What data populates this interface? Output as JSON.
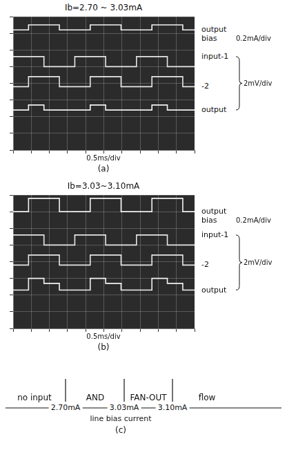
{
  "chart_data": [
    {
      "type": "line",
      "title": "Ib=2.70 ~ 3.03mA",
      "panel": "(a)",
      "x_label": "0.5ms/div",
      "x": [
        0,
        0.85,
        0.85,
        1.7,
        1.7,
        2.55,
        2.55,
        3.4,
        3.4,
        4.25,
        4.25,
        5.1,
        5.1,
        5.95,
        5.95,
        6.8,
        6.8,
        7.65,
        7.65,
        8.5,
        8.5,
        9.35,
        9.35,
        10
      ],
      "xlim": [
        0,
        10
      ],
      "xticks": [
        0,
        1,
        2,
        3,
        4,
        5,
        6,
        7,
        8,
        9,
        10
      ],
      "ylim": [
        0,
        8
      ],
      "yticks": [
        0,
        1,
        2,
        3,
        4,
        5,
        6,
        7,
        8
      ],
      "grid": true,
      "tick_labels": false,
      "series": [
        {
          "name": "output bias",
          "color": "#f2f2f2",
          "values": [
            7.2,
            7.2,
            7.5,
            7.5,
            7.5,
            7.5,
            7.2,
            7.2,
            7.2,
            7.2,
            7.5,
            7.5,
            7.5,
            7.5,
            7.2,
            7.2,
            7.2,
            7.2,
            7.5,
            7.5,
            7.5,
            7.5,
            7.2,
            7.2
          ]
        },
        {
          "name": "input-1",
          "color": "#e6e6e6",
          "values": [
            5.6,
            5.6,
            5.6,
            5.6,
            5.0,
            5.0,
            5.0,
            5.0,
            5.6,
            5.6,
            5.6,
            5.6,
            5.0,
            5.0,
            5.0,
            5.0,
            5.6,
            5.6,
            5.6,
            5.6,
            5.0,
            5.0,
            5.0,
            5.0
          ]
        },
        {
          "name": "-2",
          "color": "#e6e6e6",
          "values": [
            3.8,
            3.8,
            4.4,
            4.4,
            4.4,
            4.4,
            3.8,
            3.8,
            3.8,
            3.8,
            4.4,
            4.4,
            4.4,
            4.4,
            3.8,
            3.8,
            3.8,
            3.8,
            4.4,
            4.4,
            4.4,
            4.4,
            3.8,
            3.8
          ]
        },
        {
          "name": "output",
          "color": "#f2f2f2",
          "values": [
            2.4,
            2.4,
            2.7,
            2.7,
            2.4,
            2.4,
            2.4,
            2.4,
            2.4,
            2.4,
            2.7,
            2.7,
            2.4,
            2.4,
            2.4,
            2.4,
            2.4,
            2.4,
            2.7,
            2.7,
            2.4,
            2.4,
            2.4,
            2.4
          ]
        }
      ],
      "scale_labels": [
        {
          "text": "0.2mA/div",
          "series": [
            "output bias"
          ]
        },
        {
          "text": "2mV/div",
          "series": [
            "input-1",
            "-2",
            "output"
          ]
        }
      ]
    },
    {
      "type": "line",
      "title": "Ib=3.03~3.10mA",
      "panel": "(b)",
      "x_label": "0.5ms/div",
      "x": [
        0,
        0.85,
        0.85,
        1.7,
        1.7,
        2.55,
        2.55,
        3.4,
        3.4,
        4.25,
        4.25,
        5.1,
        5.1,
        5.95,
        5.95,
        6.8,
        6.8,
        7.65,
        7.65,
        8.5,
        8.5,
        9.35,
        9.35,
        10
      ],
      "xlim": [
        0,
        10
      ],
      "xticks": [
        0,
        1,
        2,
        3,
        4,
        5,
        6,
        7,
        8,
        9,
        10
      ],
      "ylim": [
        0,
        8
      ],
      "yticks": [
        0,
        1,
        2,
        3,
        4,
        5,
        6,
        7,
        8
      ],
      "grid": true,
      "tick_labels": false,
      "series": [
        {
          "name": "output bias",
          "color": "#f2f2f2",
          "values": [
            7.0,
            7.0,
            7.8,
            7.8,
            7.8,
            7.8,
            7.0,
            7.0,
            7.0,
            7.0,
            7.8,
            7.8,
            7.8,
            7.8,
            7.0,
            7.0,
            7.0,
            7.0,
            7.8,
            7.8,
            7.8,
            7.8,
            7.0,
            7.0
          ]
        },
        {
          "name": "input-1",
          "color": "#e6e6e6",
          "values": [
            5.6,
            5.6,
            5.6,
            5.6,
            5.0,
            5.0,
            5.0,
            5.0,
            5.6,
            5.6,
            5.6,
            5.6,
            5.0,
            5.0,
            5.0,
            5.0,
            5.6,
            5.6,
            5.6,
            5.6,
            5.0,
            5.0,
            5.0,
            5.0
          ]
        },
        {
          "name": "-2",
          "color": "#e6e6e6",
          "values": [
            3.8,
            3.8,
            4.4,
            4.4,
            4.4,
            4.4,
            3.8,
            3.8,
            3.8,
            3.8,
            4.4,
            4.4,
            4.4,
            4.4,
            3.8,
            3.8,
            3.8,
            3.8,
            4.4,
            4.4,
            4.4,
            4.4,
            3.8,
            3.8
          ]
        },
        {
          "name": "output",
          "color": "#f2f2f2",
          "values": [
            2.3,
            2.3,
            3.0,
            3.0,
            2.7,
            2.7,
            2.3,
            2.3,
            2.3,
            2.3,
            3.0,
            3.0,
            2.7,
            2.7,
            2.3,
            2.3,
            2.3,
            2.3,
            3.0,
            3.0,
            2.7,
            2.7,
            2.3,
            2.3
          ]
        }
      ],
      "scale_labels": [
        {
          "text": "0.2mA/div",
          "series": [
            "output bias"
          ]
        },
        {
          "text": "2mV/div",
          "series": [
            "input-1",
            "-2",
            "output"
          ]
        }
      ]
    }
  ],
  "diagram": {
    "regions": [
      "no input",
      "AND",
      "FAN-OUT",
      "flow"
    ],
    "boundaries": [
      "2.70mA",
      "3.03mA",
      "3.10mA"
    ],
    "axis_label": "line bias current",
    "panel": "(c)"
  }
}
